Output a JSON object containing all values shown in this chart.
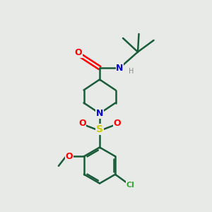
{
  "background_color": "#e8eae8",
  "bond_color": "#1a5c3a",
  "line_width": 1.8,
  "atom_colors": {
    "O": "#ff0000",
    "N": "#0000cc",
    "S": "#cccc00",
    "Cl": "#33aa33",
    "H": "#888888",
    "C": "#1a5c3a"
  },
  "figsize": [
    3.0,
    3.0
  ],
  "dpi": 100
}
